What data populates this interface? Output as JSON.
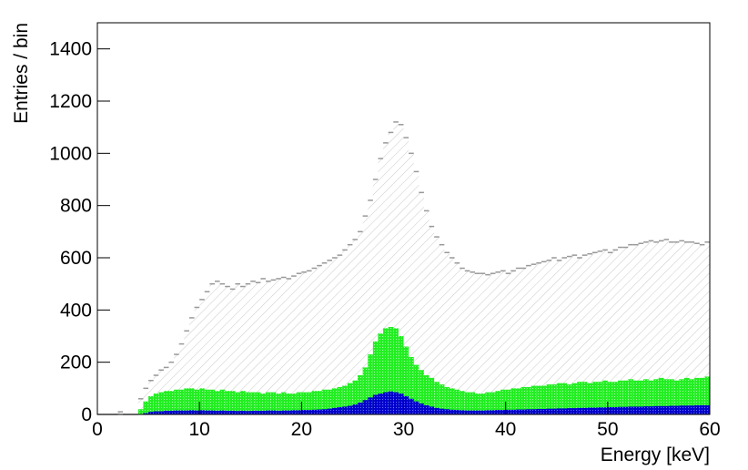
{
  "chart_data": {
    "type": "histogram",
    "x_label": "Energy [keV]",
    "y_label": "Entries / bin",
    "xlim": [
      0,
      60
    ],
    "ylim": [
      0,
      1500
    ],
    "xticks": [
      0,
      10,
      20,
      30,
      40,
      50,
      60
    ],
    "yticks": [
      0,
      200,
      400,
      600,
      800,
      1000,
      1200,
      1400
    ],
    "bins": [
      0,
      0.5,
      1,
      1.5,
      2,
      2.5,
      3,
      3.5,
      4,
      4.5,
      5,
      5.5,
      6,
      6.5,
      7,
      7.5,
      8,
      8.5,
      9,
      9.5,
      10,
      10.5,
      11,
      11.5,
      12,
      12.5,
      13,
      13.5,
      14,
      14.5,
      15,
      15.5,
      16,
      16.5,
      17,
      17.5,
      18,
      18.5,
      19,
      19.5,
      20,
      20.5,
      21,
      21.5,
      22,
      22.5,
      23,
      23.5,
      24,
      24.5,
      25,
      25.5,
      26,
      26.5,
      27,
      27.5,
      28,
      28.5,
      29,
      29.5,
      30,
      30.5,
      31,
      31.5,
      32,
      32.5,
      33,
      33.5,
      34,
      34.5,
      35,
      35.5,
      36,
      36.5,
      37,
      37.5,
      38,
      38.5,
      39,
      39.5,
      40,
      40.5,
      41,
      41.5,
      42,
      42.5,
      43,
      43.5,
      44,
      44.5,
      45,
      45.5,
      46,
      46.5,
      47,
      47.5,
      48,
      48.5,
      49,
      49.5,
      50,
      50.5,
      51,
      51.5,
      52,
      52.5,
      53,
      53.5,
      54,
      54.5,
      55,
      55.5,
      56,
      56.5,
      57,
      57.5,
      58,
      58.5,
      59,
      59.5,
      60
    ],
    "series": [
      {
        "color": "#999999",
        "values": [
          0,
          0,
          0,
          0,
          10,
          0,
          0,
          0,
          60,
          100,
          130,
          150,
          170,
          180,
          200,
          230,
          270,
          320,
          370,
          410,
          440,
          470,
          500,
          510,
          500,
          490,
          480,
          500,
          490,
          500,
          510,
          505,
          520,
          510,
          515,
          520,
          525,
          520,
          530,
          540,
          545,
          550,
          560,
          570,
          580,
          590,
          600,
          610,
          630,
          650,
          670,
          700,
          760,
          820,
          900,
          980,
          1040,
          1080,
          1120,
          1110,
          1060,
          1000,
          930,
          850,
          780,
          720,
          680,
          650,
          620,
          600,
          580,
          560,
          550,
          545,
          540,
          540,
          535,
          540,
          545,
          550,
          540,
          550,
          560,
          560,
          570,
          575,
          580,
          585,
          590,
          600,
          590,
          600,
          605,
          610,
          600,
          610,
          615,
          620,
          625,
          630,
          620,
          630,
          640,
          640,
          650,
          650,
          655,
          660,
          665,
          660,
          665,
          670,
          660,
          660,
          665,
          660,
          660,
          655,
          650,
          660
        ]
      },
      {
        "color": "#22ee22",
        "values": [
          0,
          0,
          0,
          0,
          0,
          0,
          0,
          0,
          20,
          50,
          70,
          80,
          85,
          90,
          90,
          95,
          95,
          100,
          100,
          95,
          100,
          95,
          95,
          90,
          95,
          90,
          90,
          85,
          90,
          85,
          85,
          85,
          80,
          85,
          85,
          80,
          85,
          80,
          80,
          85,
          85,
          85,
          90,
          90,
          95,
          95,
          100,
          105,
          110,
          120,
          130,
          150,
          180,
          230,
          280,
          310,
          330,
          335,
          330,
          300,
          260,
          220,
          190,
          170,
          150,
          140,
          125,
          115,
          105,
          100,
          95,
          90,
          85,
          85,
          80,
          80,
          85,
          85,
          90,
          95,
          95,
          100,
          100,
          105,
          105,
          110,
          110,
          110,
          115,
          115,
          120,
          120,
          115,
          120,
          125,
          125,
          120,
          125,
          125,
          130,
          125,
          125,
          130,
          130,
          135,
          130,
          130,
          135,
          130,
          135,
          140,
          135,
          135,
          130,
          135,
          140,
          135,
          140,
          140,
          145
        ]
      },
      {
        "color": "#0000cc",
        "values": [
          0,
          0,
          0,
          0,
          0,
          0,
          0,
          0,
          0,
          5,
          10,
          12,
          12,
          14,
          14,
          15,
          15,
          15,
          16,
          15,
          16,
          15,
          15,
          14,
          15,
          14,
          14,
          13,
          14,
          13,
          14,
          14,
          14,
          15,
          15,
          14,
          15,
          15,
          16,
          16,
          17,
          17,
          18,
          19,
          20,
          22,
          25,
          28,
          30,
          33,
          38,
          45,
          55,
          65,
          75,
          80,
          85,
          88,
          85,
          80,
          70,
          60,
          50,
          42,
          35,
          30,
          25,
          22,
          20,
          18,
          17,
          16,
          15,
          15,
          15,
          15,
          16,
          16,
          17,
          17,
          18,
          18,
          19,
          19,
          20,
          20,
          21,
          21,
          22,
          22,
          23,
          23,
          24,
          24,
          25,
          25,
          26,
          26,
          27,
          27,
          28,
          28,
          29,
          29,
          30,
          30,
          30,
          31,
          31,
          32,
          32,
          32,
          33,
          33,
          34,
          34,
          34,
          35,
          35,
          35
        ]
      }
    ]
  }
}
